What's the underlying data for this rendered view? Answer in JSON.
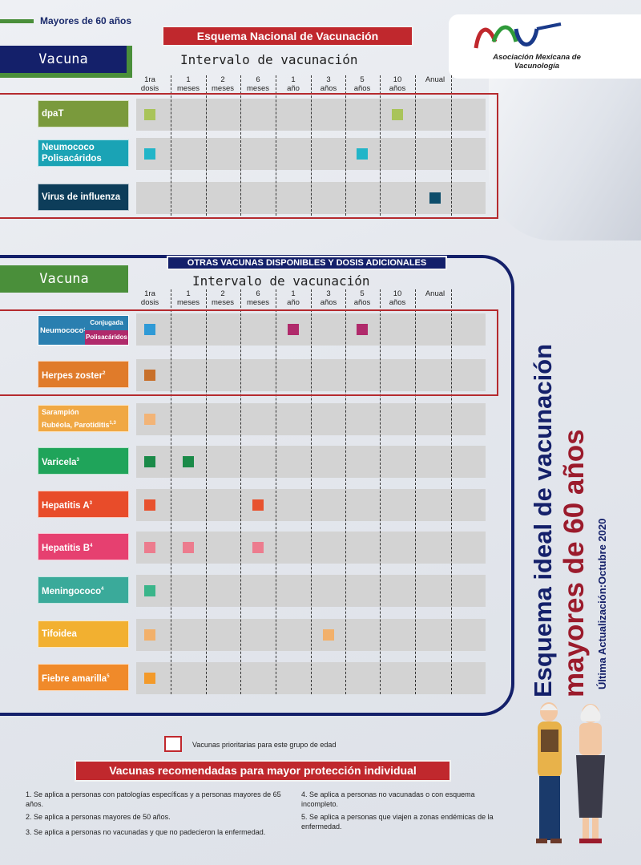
{
  "header": {
    "age_label": "Mayores de 60 años",
    "national_title": "Esquema Nacional de Vacunación",
    "vacuna_label": "Vacuna",
    "interval_title": "Intervalo de vacunación",
    "logo_text_1": "Asociación Mexicana de",
    "logo_text_2": "Vacunología",
    "logo_icon": "amv-logo-icon"
  },
  "columns": [
    {
      "top": "1ra",
      "bottom": "dosis"
    },
    {
      "top": "1",
      "bottom": "meses"
    },
    {
      "top": "2",
      "bottom": "meses"
    },
    {
      "top": "6",
      "bottom": "meses"
    },
    {
      "top": "1",
      "bottom": "año"
    },
    {
      "top": "3",
      "bottom": "años"
    },
    {
      "top": "5",
      "bottom": "años"
    },
    {
      "top": "10",
      "bottom": "años"
    },
    {
      "top": "Anual",
      "bottom": ""
    }
  ],
  "national": [
    {
      "name": "dpaT",
      "color": "#7a9a3c",
      "dose_color": "#a9c45a",
      "doses": [
        0,
        7
      ]
    },
    {
      "name": "Neumococo Polisacáridos",
      "color": "#1aa3b5",
      "dose_color": "#22b5c8",
      "doses": [
        0,
        6
      ]
    },
    {
      "name": "Virus de influenza",
      "color": "#0d3d5a",
      "dose_color": "#0d4d6b",
      "doses": [
        8
      ]
    }
  ],
  "others_title": "OTRAS VACUNAS DISPONIBLES Y DOSIS ADICIONALES",
  "neumococo_other": {
    "name": "Neumococo",
    "sup": "1",
    "conjugada": "Conjugada",
    "polisacaridos": "Polisacáridos",
    "color": "#2a7fb0",
    "conj_dose_color": "#2f9ad6",
    "poli_dose_color": "#b02a6b"
  },
  "others": [
    {
      "name": "Herpes zoster",
      "sup": "2",
      "color": "#e07b2a",
      "dose_color": "#c8702a",
      "doses": [
        0
      ]
    },
    {
      "name": "Sarampión\nRubéola, Parotiditis",
      "sup": "1,3",
      "color": "#f0a844",
      "dose_color": "#f2b477",
      "doses": [
        0
      ]
    },
    {
      "name": "Varicela",
      "sup": "3",
      "color": "#1fa45a",
      "dose_color": "#1a8a48",
      "doses": [
        0,
        1
      ]
    },
    {
      "name": "Hepatitis A",
      "sup": "3",
      "color": "#e84c2a",
      "dose_color": "#e8522e",
      "doses": [
        0,
        3
      ]
    },
    {
      "name": "Hepatitis B",
      "sup": "4",
      "color": "#e64070",
      "dose_color": "#ec7c8e",
      "doses": [
        0,
        1,
        3
      ]
    },
    {
      "name": "Meningococo",
      "sup": "4",
      "color": "#3aaa9a",
      "dose_color": "#3ab58a",
      "doses": [
        0
      ]
    },
    {
      "name": "Tifoidea",
      "sup": "",
      "color": "#f2b030",
      "dose_color": "#f2b06a",
      "doses": [
        0,
        5
      ]
    },
    {
      "name": "Fiebre amarilla",
      "sup": "5",
      "color": "#f08a2a",
      "dose_color": "#f39a2a",
      "doses": [
        0
      ]
    }
  ],
  "side": {
    "line1": "Esquema ideal de vacunación",
    "line2": "mayores de 60 años",
    "update": "Última Actualización:Octubre 2020",
    "illustration": "elderly-couple-illustration"
  },
  "legend": {
    "priority": "Vacunas prioritarias para este grupo de edad",
    "recommended": "Vacunas recomendadas para mayor protección individual"
  },
  "notes": {
    "n1": "1. Se aplica a personas con patologías específicas y a personas mayores de 65 años.",
    "n2": "2. Se aplica a personas mayores de 50 años.",
    "n3": "3. Se aplica a personas no vacunadas y que no padecieron la enfermedad.",
    "n4": "4. Se aplica a personas no vacunadas o con esquema incompleto.",
    "n5": "5. Se aplica a personas que viajen a zonas endémicas de la enfermedad."
  }
}
